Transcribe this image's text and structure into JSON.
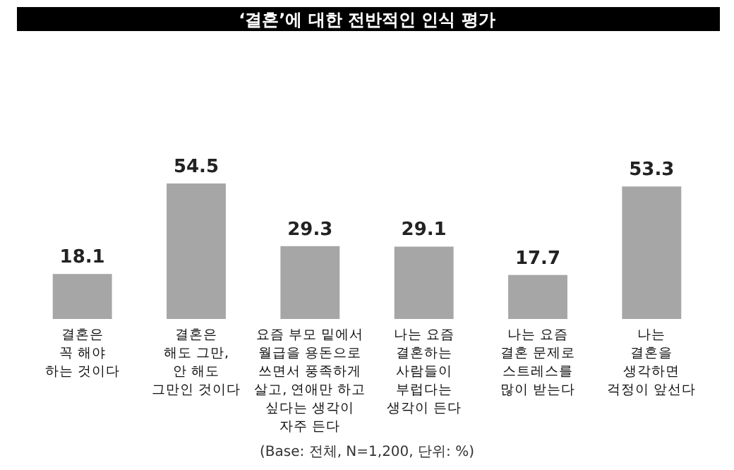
{
  "chart_data": {
    "type": "bar",
    "title": "‘결혼’에 대한 전반적인 인식 평가",
    "categories": [
      "결혼은\n꼭 해야\n하는 것이다",
      "결혼은\n해도 그만,\n안 해도\n그만인 것이다",
      "요즘 부모 밑에서\n월급을 용돈으로\n쓰면서 풍족하게\n살고, 연애만 하고\n싶다는 생각이\n자주 든다",
      "나는 요즘\n결혼하는\n사람들이\n부럽다는\n생각이 든다",
      "나는 요즘\n결혼 문제로\n스트레스를\n많이 받는다",
      "나는\n결혼을\n생각하면\n걱정이 앞선다"
    ],
    "values": [
      18.1,
      54.5,
      29.3,
      29.1,
      17.7,
      53.3
    ],
    "color": "#a6a6a6",
    "data_labels": true,
    "annotations": [
      "(Base: 전체, N=1,200, 단위: %)"
    ]
  }
}
